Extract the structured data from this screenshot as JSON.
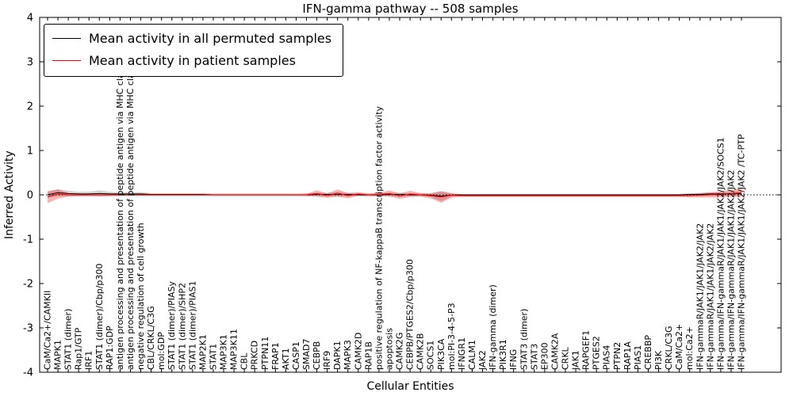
{
  "chart_data": {
    "type": "line",
    "title": "IFN-gamma pathway -- 508 samples",
    "xlabel": "Cellular Entities",
    "ylabel": "Inferred Activity",
    "ylim": [
      -4,
      4
    ],
    "y_ticks": [
      -4,
      -3,
      -2,
      -1,
      0,
      1,
      2,
      3,
      4
    ],
    "zero_line": true,
    "legend_position": "upper-left",
    "categories": [
      "CaM/Ca2+/CAMKII",
      "MAPK1",
      "STAT1 (dimer)",
      "Rap1/GTP",
      "IRF1",
      "STAT1 (dimer)/Cbp/p300",
      "RAP1:GDP",
      "antigen processing and presentation of peptide antigen via MHC class I",
      "antigen processing and presentation of peptide antigen via MHC class I",
      "negative regulation of cell growth",
      "CBL/CRKL/C3G",
      "mol:GDP",
      "STAT1 (dimer)/PIASy",
      "STAT1 (dimer)/SHP2",
      "STAT1 (dimer)/PIAS1",
      "MAP2K1",
      "STAT1",
      "MAP3K1",
      "MAP3K11",
      "CBL",
      "PRKCD",
      "PTPN11",
      "FRAP1",
      "AKT1",
      "CASP1",
      "SMAD7",
      "CEBPB",
      "IRF9",
      "DAPK1",
      "MAPK3",
      "CAMK2D",
      "RAP1B",
      "positive regulation of NF-kappaB transcription factor activity",
      "apoptosis",
      "CAMK2G",
      "CEBPB/PTGES2/Cbp/p300",
      "CAMK2B",
      "SOCS1",
      "PIK3CA",
      "mol:PI-3-4-5-P3",
      "IFNGR1",
      "CALM1",
      "JAK2",
      "IFN-gamma (dimer)",
      "PIK3R1",
      "IFNG",
      "STAT3 (dimer)",
      "STAT3",
      "EP300",
      "CAMK2A",
      "CRKL",
      "JAK1",
      "RAPGEF1",
      "PTGES2",
      "PIAS4",
      "PTPN2",
      "RAP1A",
      "PIAS1",
      "CREBBP",
      "PI3K",
      "CRKL/C3G",
      "CaM/Ca2+",
      "mol:Ca2+",
      "IFN-gammaR/JAK1/JAK1/JAK2/JAK2",
      "IFN-gammaR/JAK1/JAK1/JAK2/JAK2",
      "IFN-gamma/IFN-gammaR/JAK1/JAK1/JAK2/JAK2/SOCS1",
      "IFN-gamma/IFN-gammaR/JAK1/JAK1/JAK2/JAK2",
      "IFN-gamma/IFN-gammaR/JAK1/JAK1/JAK2/JAK2 /TC-PTP"
    ],
    "series": [
      {
        "name": "Mean activity in all permuted samples",
        "color": "#000000",
        "band_color": "#808080",
        "band_opacity": 0.35,
        "values": [
          0.0,
          0.05,
          0.03,
          0.02,
          0.02,
          0.03,
          0.02,
          0.02,
          0.02,
          0.02,
          0.01,
          0.01,
          0.01,
          0.01,
          0.01,
          0.01,
          0.0,
          0.0,
          0.0,
          0.0,
          0.0,
          0.0,
          0.0,
          0.0,
          0.0,
          0.0,
          0.01,
          0.01,
          0.01,
          0.01,
          0.0,
          0.0,
          0.0,
          0.01,
          0.01,
          0.0,
          0.0,
          -0.01,
          -0.03,
          -0.01,
          0.0,
          0.0,
          0.0,
          0.0,
          0.0,
          0.0,
          0.0,
          0.0,
          0.0,
          0.0,
          0.0,
          0.0,
          0.0,
          0.0,
          0.0,
          0.0,
          0.0,
          0.0,
          0.0,
          0.0,
          0.0,
          0.0,
          0.01,
          0.01,
          0.02,
          0.02,
          0.03,
          0.03
        ],
        "std": [
          0.06,
          0.08,
          0.06,
          0.05,
          0.05,
          0.07,
          0.05,
          0.04,
          0.04,
          0.04,
          0.03,
          0.03,
          0.03,
          0.03,
          0.03,
          0.03,
          0.03,
          0.03,
          0.03,
          0.03,
          0.03,
          0.03,
          0.03,
          0.03,
          0.03,
          0.03,
          0.04,
          0.04,
          0.05,
          0.04,
          0.03,
          0.03,
          0.03,
          0.04,
          0.04,
          0.03,
          0.03,
          0.04,
          0.11,
          0.04,
          0.02,
          0.02,
          0.02,
          0.02,
          0.02,
          0.02,
          0.02,
          0.02,
          0.02,
          0.02,
          0.02,
          0.02,
          0.02,
          0.02,
          0.02,
          0.02,
          0.02,
          0.02,
          0.02,
          0.02,
          0.02,
          0.02,
          0.03,
          0.03,
          0.03,
          0.04,
          0.04,
          0.05
        ]
      },
      {
        "name": "Mean activity in patient samples",
        "color": "#ff0000",
        "band_color": "#ff0000",
        "band_opacity": 0.3,
        "values": [
          -0.05,
          0.02,
          0.0,
          0.0,
          0.0,
          0.0,
          0.0,
          0.0,
          0.0,
          0.0,
          0.0,
          0.0,
          0.0,
          0.0,
          0.0,
          0.0,
          0.0,
          0.0,
          0.0,
          0.0,
          0.0,
          0.0,
          0.0,
          0.0,
          0.0,
          0.0,
          0.03,
          -0.02,
          0.04,
          -0.02,
          0.02,
          0.0,
          0.01,
          0.03,
          -0.03,
          0.02,
          0.0,
          -0.02,
          -0.05,
          -0.01,
          -0.02,
          -0.02,
          -0.02,
          -0.02,
          -0.02,
          -0.02,
          -0.02,
          -0.02,
          -0.02,
          -0.02,
          -0.02,
          -0.02,
          -0.02,
          -0.02,
          -0.02,
          -0.02,
          -0.02,
          -0.02,
          -0.02,
          -0.02,
          -0.02,
          -0.02,
          -0.02,
          -0.01,
          0.0,
          0.01,
          0.03,
          0.05
        ],
        "std": [
          0.14,
          0.1,
          0.04,
          0.03,
          0.03,
          0.03,
          0.03,
          0.02,
          0.02,
          0.02,
          0.02,
          0.02,
          0.02,
          0.02,
          0.02,
          0.02,
          0.02,
          0.02,
          0.02,
          0.02,
          0.02,
          0.02,
          0.02,
          0.02,
          0.02,
          0.03,
          0.07,
          0.05,
          0.08,
          0.06,
          0.04,
          0.03,
          0.04,
          0.07,
          0.06,
          0.07,
          0.04,
          0.06,
          0.13,
          0.05,
          0.03,
          0.03,
          0.03,
          0.03,
          0.03,
          0.03,
          0.03,
          0.03,
          0.03,
          0.03,
          0.03,
          0.03,
          0.03,
          0.03,
          0.03,
          0.03,
          0.03,
          0.03,
          0.03,
          0.03,
          0.03,
          0.03,
          0.04,
          0.05,
          0.06,
          0.07,
          0.08,
          0.1
        ]
      }
    ]
  }
}
